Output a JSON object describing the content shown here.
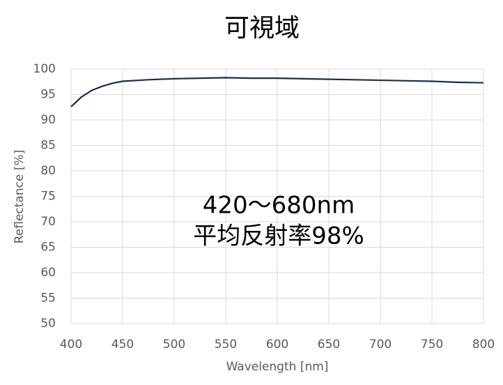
{
  "chart_data": {
    "type": "line",
    "title": "可視域",
    "x_label": "Wavelength [nm]",
    "y_label": "Reflectance [%]",
    "x": [
      400,
      410,
      420,
      430,
      440,
      450,
      475,
      500,
      525,
      550,
      575,
      600,
      625,
      650,
      675,
      700,
      725,
      750,
      775,
      800
    ],
    "series": [
      {
        "name": "Reflectance",
        "color": "#1f2d4a",
        "values": [
          92.6,
          94.5,
          95.8,
          96.6,
          97.2,
          97.6,
          97.9,
          98.1,
          98.2,
          98.3,
          98.2,
          98.2,
          98.1,
          98.0,
          97.9,
          97.8,
          97.7,
          97.6,
          97.4,
          97.3
        ]
      }
    ],
    "xlim": [
      400,
      800
    ],
    "xticks": [
      400,
      450,
      500,
      550,
      600,
      650,
      700,
      750,
      800
    ],
    "ylim": [
      50,
      100
    ],
    "yticks": [
      50,
      55,
      60,
      65,
      70,
      75,
      80,
      85,
      90,
      95,
      100
    ],
    "grid": true,
    "annotations": [
      "420～680nm",
      "平均反射率98%"
    ]
  }
}
